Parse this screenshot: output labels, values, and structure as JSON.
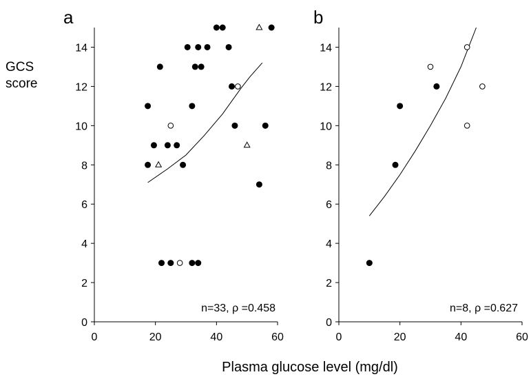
{
  "figure": {
    "ylabel_line1": "GCS",
    "ylabel_line2": "score",
    "xlabel": "Plasma glucose level (mg/dl)"
  },
  "chart_data": [
    {
      "type": "scatter",
      "panel_label": "a",
      "xlim": [
        0,
        60
      ],
      "ylim": [
        0,
        15
      ],
      "xticks": [
        0,
        20,
        40,
        60
      ],
      "yticks": [
        0,
        2,
        4,
        6,
        8,
        10,
        12,
        14
      ],
      "grid": false,
      "annotation": {
        "n": "n=33,",
        "rho": "ρ =0.458"
      },
      "series": [
        {
          "marker": "filled-circle",
          "points": [
            [
              17.5,
              11
            ],
            [
              17.5,
              8
            ],
            [
              19.5,
              9
            ],
            [
              21.5,
              13
            ],
            [
              24,
              9
            ],
            [
              27,
              9
            ],
            [
              29,
              8
            ],
            [
              30.5,
              14
            ],
            [
              32,
              11
            ],
            [
              33,
              13
            ],
            [
              34,
              14
            ],
            [
              35,
              13
            ],
            [
              37,
              14
            ],
            [
              40,
              15
            ],
            [
              42,
              15
            ],
            [
              44,
              14
            ],
            [
              45,
              12
            ],
            [
              46,
              10
            ],
            [
              54,
              7
            ],
            [
              56,
              10
            ],
            [
              58,
              15
            ],
            [
              22,
              3
            ],
            [
              25,
              3
            ],
            [
              32,
              3
            ],
            [
              34,
              3
            ]
          ]
        },
        {
          "marker": "open-circle",
          "points": [
            [
              25,
              10
            ],
            [
              47,
              12
            ],
            [
              28,
              3
            ]
          ]
        },
        {
          "marker": "open-triangle",
          "points": [
            [
              21,
              8
            ],
            [
              50,
              9
            ],
            [
              54,
              15
            ]
          ]
        }
      ],
      "fit_curve": [
        [
          17.5,
          7.1
        ],
        [
          24,
          7.8
        ],
        [
          30,
          8.5
        ],
        [
          36,
          9.5
        ],
        [
          42,
          10.6
        ],
        [
          48,
          11.9
        ],
        [
          51,
          12.5
        ],
        [
          55,
          13.2
        ]
      ]
    },
    {
      "type": "scatter",
      "panel_label": "b",
      "xlim": [
        0,
        60
      ],
      "ylim": [
        0,
        15
      ],
      "xticks": [
        0,
        20,
        40,
        60
      ],
      "yticks": [
        0,
        2,
        4,
        6,
        8,
        10,
        12,
        14
      ],
      "grid": false,
      "annotation": {
        "n": "n=8,",
        "rho": "ρ =0.627"
      },
      "series": [
        {
          "marker": "filled-circle",
          "points": [
            [
              10,
              3
            ],
            [
              18.5,
              8
            ],
            [
              20,
              11
            ],
            [
              32,
              12
            ]
          ]
        },
        {
          "marker": "open-circle",
          "points": [
            [
              30,
              13
            ],
            [
              42,
              14
            ],
            [
              42,
              10
            ],
            [
              47,
              12
            ]
          ]
        }
      ],
      "fit_curve": [
        [
          10,
          5.4
        ],
        [
          15,
          6.4
        ],
        [
          20,
          7.5
        ],
        [
          25,
          8.7
        ],
        [
          30,
          10.0
        ],
        [
          35,
          11.4
        ],
        [
          40,
          13.0
        ],
        [
          43,
          14.2
        ],
        [
          45,
          15.0
        ]
      ]
    }
  ]
}
